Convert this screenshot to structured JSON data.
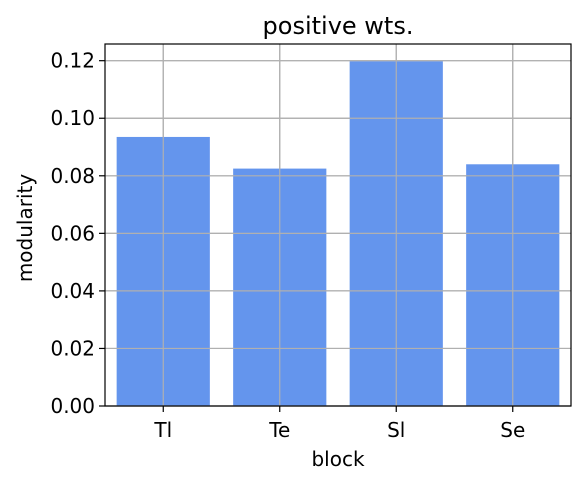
{
  "chart_data": {
    "type": "bar",
    "title": "positive wts.",
    "xlabel": "block",
    "ylabel": "modularity",
    "categories": [
      "Tl",
      "Te",
      "Sl",
      "Se"
    ],
    "values": [
      0.0935,
      0.0825,
      0.1198,
      0.084
    ],
    "ylim": [
      0,
      0.1258
    ],
    "yticks": [
      0.0,
      0.02,
      0.04,
      0.06,
      0.08,
      0.1,
      0.12
    ],
    "ytick_labels": [
      "0.00",
      "0.02",
      "0.04",
      "0.06",
      "0.08",
      "0.10",
      "0.12"
    ],
    "grid": true,
    "bar_color": "#6495ed",
    "grid_color": "#b0b0b0"
  }
}
